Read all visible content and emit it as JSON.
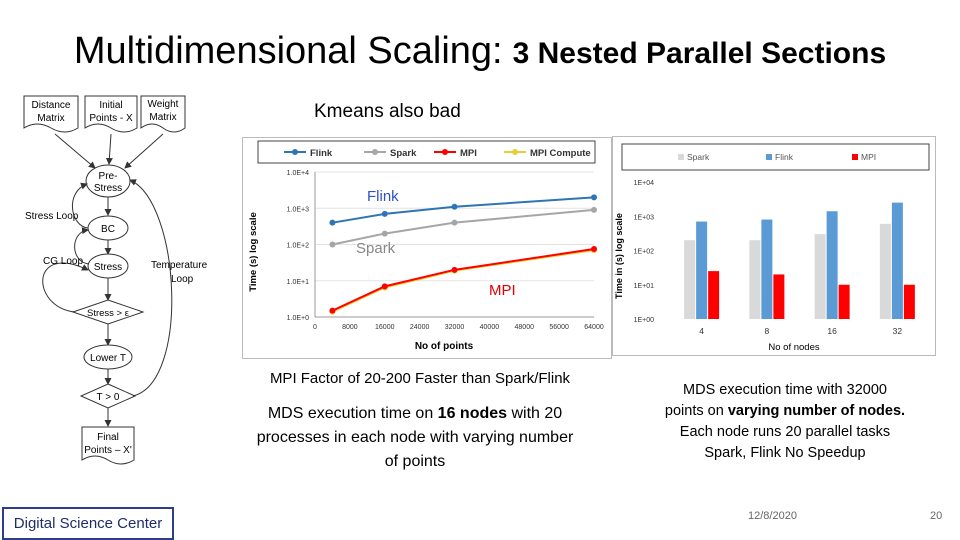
{
  "slide": {
    "title_main": "Multidimensional Scaling:",
    "title_sub": "3 Nested Parallel Sections",
    "subtitle": "Kmeans also bad",
    "caption_line_chart": "MPI Factor of 20-200 Faster than Spark/Flink",
    "caption_left_pre": "MDS execution time on ",
    "caption_left_bold": "16 nodes",
    "caption_left_post": " with 20 processes in each node with varying number of points",
    "caption_right_l1": "MDS execution time with 32000",
    "caption_right_l2_pre": "points on ",
    "caption_right_l2_bold": "varying number of nodes.",
    "caption_right_l3": "Each node runs 20 parallel tasks",
    "caption_right_l4": "Spark, Flink No Speedup",
    "footer_label": "Digital Science Center",
    "date": "12/8/2020",
    "page_number": "20"
  },
  "flowchart": {
    "nodes": {
      "distance_matrix": "Distance Matrix",
      "initial_points": "Initial Points - X",
      "weight_matrix": "Weight Matrix",
      "pre_stress": "Pre-Stress",
      "bc": "BC",
      "stress": "Stress",
      "stress_check": "Stress > ε",
      "lower_t": "Lower T",
      "t_check": "T > 0",
      "final_points": "Final Points – X'"
    },
    "labels": {
      "stress_loop": "Stress Loop",
      "cg_loop": "CG Loop",
      "temperature_loop": "Temperature Loop"
    }
  },
  "chart_data": [
    {
      "type": "line",
      "title": "",
      "xlabel": "No of points",
      "ylabel": "Time (s) log scale",
      "yscale": "log",
      "ylim": [
        1,
        10000
      ],
      "xlim": [
        0,
        64000
      ],
      "x_ticks": [
        "0",
        "8000",
        "16000",
        "24000",
        "32000",
        "40000",
        "48000",
        "56000",
        "64000"
      ],
      "y_ticks": [
        "1.0E+0",
        "1.0E+1",
        "1.0E+2",
        "1.0E+3",
        "1.0E+4"
      ],
      "legend": [
        "Flink",
        "Spark",
        "MPI",
        "MPI Compute"
      ],
      "legend_position": "top",
      "annotations": [
        "Flink",
        "Spark",
        "MPI"
      ],
      "colors": {
        "Flink": "#2e75b6",
        "Spark": "#a6a6a6",
        "MPI": "#ff0000",
        "MPI Compute": "#e6d033",
        "annotation_flink": "#2e50c8",
        "annotation_mpi": "#e00000"
      },
      "x": [
        4000,
        16000,
        32000,
        64000
      ],
      "series": [
        {
          "name": "Flink",
          "values": [
            400,
            700,
            1100,
            2000
          ]
        },
        {
          "name": "Spark",
          "values": [
            100,
            200,
            400,
            900
          ]
        },
        {
          "name": "MPI",
          "values": [
            1.5,
            7,
            20,
            75
          ]
        },
        {
          "name": "MPI Compute",
          "values": [
            1.4,
            6.5,
            19,
            70
          ]
        }
      ]
    },
    {
      "type": "bar",
      "title": "",
      "xlabel": "No of nodes",
      "ylabel": "Time in (s) log scale",
      "yscale": "log",
      "ylim": [
        1,
        10000
      ],
      "categories": [
        "4",
        "8",
        "16",
        "32"
      ],
      "y_ticks": [
        "1E+00",
        "1E+01",
        "1E+02",
        "1E+03",
        "1E+04"
      ],
      "legend": [
        "Spark",
        "Flink",
        "MPI"
      ],
      "legend_position": "top",
      "colors": {
        "Spark": "#d9d9d9",
        "Flink": "#5b9bd5",
        "MPI": "#ff0000"
      },
      "series": [
        {
          "name": "Spark",
          "values": [
            200,
            200,
            300,
            600
          ]
        },
        {
          "name": "Flink",
          "values": [
            700,
            800,
            1400,
            2500
          ]
        },
        {
          "name": "MPI",
          "values": [
            25,
            20,
            10,
            10
          ]
        }
      ]
    }
  ]
}
